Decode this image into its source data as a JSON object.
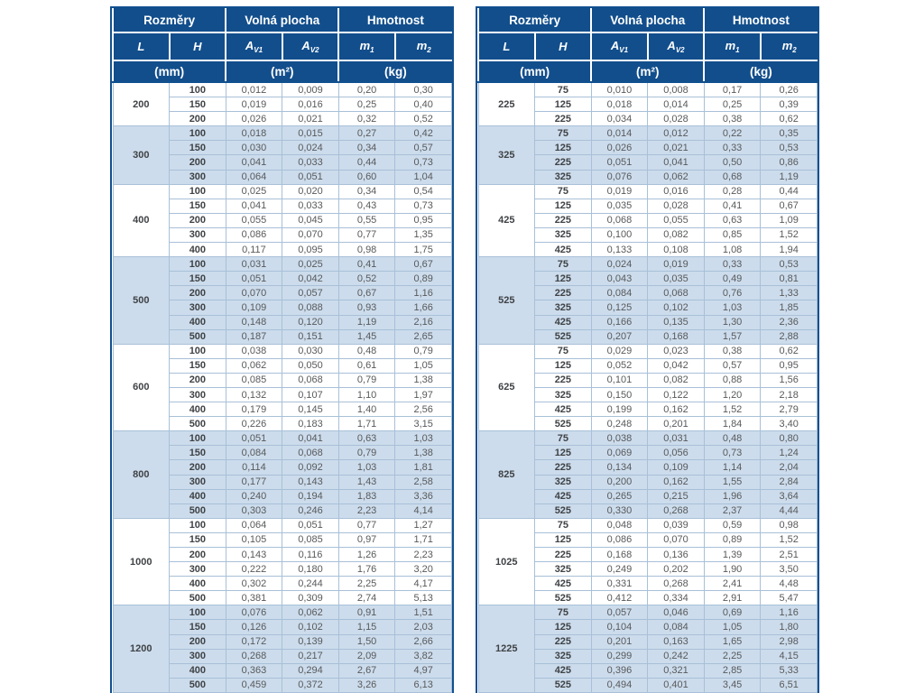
{
  "header": {
    "groups": [
      "Rozměry",
      "Volná plocha",
      "Hmotnost"
    ],
    "vars": {
      "L": "L",
      "H": "H",
      "A": "A",
      "m": "m",
      "v1": "V1",
      "v2": "V2",
      "s1": "1",
      "s2": "2"
    },
    "units": [
      "(mm)",
      "(m²)",
      "(kg)"
    ]
  },
  "colors": {
    "header_bg": "#124e8c",
    "alt_band_bg": "#ccdcec",
    "grid_line": "#a8c0d8",
    "outer_border": "#11508f",
    "value_text": "#58595b",
    "bold_text": "#3f4245"
  },
  "tables": [
    {
      "groups": [
        {
          "L": "200",
          "rows": [
            [
              "100",
              "0,012",
              "0,009",
              "0,20",
              "0,30"
            ],
            [
              "150",
              "0,019",
              "0,016",
              "0,25",
              "0,40"
            ],
            [
              "200",
              "0,026",
              "0,021",
              "0,32",
              "0,52"
            ]
          ]
        },
        {
          "L": "300",
          "rows": [
            [
              "100",
              "0,018",
              "0,015",
              "0,27",
              "0,42"
            ],
            [
              "150",
              "0,030",
              "0,024",
              "0,34",
              "0,57"
            ],
            [
              "200",
              "0,041",
              "0,033",
              "0,44",
              "0,73"
            ],
            [
              "300",
              "0,064",
              "0,051",
              "0,60",
              "1,04"
            ]
          ]
        },
        {
          "L": "400",
          "rows": [
            [
              "100",
              "0,025",
              "0,020",
              "0,34",
              "0,54"
            ],
            [
              "150",
              "0,041",
              "0,033",
              "0,43",
              "0,73"
            ],
            [
              "200",
              "0,055",
              "0,045",
              "0,55",
              "0,95"
            ],
            [
              "300",
              "0,086",
              "0,070",
              "0,77",
              "1,35"
            ],
            [
              "400",
              "0,117",
              "0,095",
              "0,98",
              "1,75"
            ]
          ]
        },
        {
          "L": "500",
          "rows": [
            [
              "100",
              "0,031",
              "0,025",
              "0,41",
              "0,67"
            ],
            [
              "150",
              "0,051",
              "0,042",
              "0,52",
              "0,89"
            ],
            [
              "200",
              "0,070",
              "0,057",
              "0,67",
              "1,16"
            ],
            [
              "300",
              "0,109",
              "0,088",
              "0,93",
              "1,66"
            ],
            [
              "400",
              "0,148",
              "0,120",
              "1,19",
              "2,16"
            ],
            [
              "500",
              "0,187",
              "0,151",
              "1,45",
              "2,65"
            ]
          ]
        },
        {
          "L": "600",
          "rows": [
            [
              "100",
              "0,038",
              "0,030",
              "0,48",
              "0,79"
            ],
            [
              "150",
              "0,062",
              "0,050",
              "0,61",
              "1,05"
            ],
            [
              "200",
              "0,085",
              "0,068",
              "0,79",
              "1,38"
            ],
            [
              "300",
              "0,132",
              "0,107",
              "1,10",
              "1,97"
            ],
            [
              "400",
              "0,179",
              "0,145",
              "1,40",
              "2,56"
            ],
            [
              "500",
              "0,226",
              "0,183",
              "1,71",
              "3,15"
            ]
          ]
        },
        {
          "L": "800",
          "rows": [
            [
              "100",
              "0,051",
              "0,041",
              "0,63",
              "1,03"
            ],
            [
              "150",
              "0,084",
              "0,068",
              "0,79",
              "1,38"
            ],
            [
              "200",
              "0,114",
              "0,092",
              "1,03",
              "1,81"
            ],
            [
              "300",
              "0,177",
              "0,143",
              "1,43",
              "2,58"
            ],
            [
              "400",
              "0,240",
              "0,194",
              "1,83",
              "3,36"
            ],
            [
              "500",
              "0,303",
              "0,246",
              "2,23",
              "4,14"
            ]
          ]
        },
        {
          "L": "1000",
          "rows": [
            [
              "100",
              "0,064",
              "0,051",
              "0,77",
              "1,27"
            ],
            [
              "150",
              "0,105",
              "0,085",
              "0,97",
              "1,71"
            ],
            [
              "200",
              "0,143",
              "0,116",
              "1,26",
              "2,23"
            ],
            [
              "300",
              "0,222",
              "0,180",
              "1,76",
              "3,20"
            ],
            [
              "400",
              "0,302",
              "0,244",
              "2,25",
              "4,17"
            ],
            [
              "500",
              "0,381",
              "0,309",
              "2,74",
              "5,13"
            ]
          ]
        },
        {
          "L": "1200",
          "rows": [
            [
              "100",
              "0,076",
              "0,062",
              "0,91",
              "1,51"
            ],
            [
              "150",
              "0,126",
              "0,102",
              "1,15",
              "2,03"
            ],
            [
              "200",
              "0,172",
              "0,139",
              "1,50",
              "2,66"
            ],
            [
              "300",
              "0,268",
              "0,217",
              "2,09",
              "3,82"
            ],
            [
              "400",
              "0,363",
              "0,294",
              "2,67",
              "4,97"
            ],
            [
              "500",
              "0,459",
              "0,372",
              "3,26",
              "6,13"
            ]
          ]
        }
      ]
    },
    {
      "groups": [
        {
          "L": "225",
          "rows": [
            [
              "75",
              "0,010",
              "0,008",
              "0,17",
              "0,26"
            ],
            [
              "125",
              "0,018",
              "0,014",
              "0,25",
              "0,39"
            ],
            [
              "225",
              "0,034",
              "0,028",
              "0,38",
              "0,62"
            ]
          ]
        },
        {
          "L": "325",
          "rows": [
            [
              "75",
              "0,014",
              "0,012",
              "0,22",
              "0,35"
            ],
            [
              "125",
              "0,026",
              "0,021",
              "0,33",
              "0,53"
            ],
            [
              "225",
              "0,051",
              "0,041",
              "0,50",
              "0,86"
            ],
            [
              "325",
              "0,076",
              "0,062",
              "0,68",
              "1,19"
            ]
          ]
        },
        {
          "L": "425",
          "rows": [
            [
              "75",
              "0,019",
              "0,016",
              "0,28",
              "0,44"
            ],
            [
              "125",
              "0,035",
              "0,028",
              "0,41",
              "0,67"
            ],
            [
              "225",
              "0,068",
              "0,055",
              "0,63",
              "1,09"
            ],
            [
              "325",
              "0,100",
              "0,082",
              "0,85",
              "1,52"
            ],
            [
              "425",
              "0,133",
              "0,108",
              "1,08",
              "1,94"
            ]
          ]
        },
        {
          "L": "525",
          "rows": [
            [
              "75",
              "0,024",
              "0,019",
              "0,33",
              "0,53"
            ],
            [
              "125",
              "0,043",
              "0,035",
              "0,49",
              "0,81"
            ],
            [
              "225",
              "0,084",
              "0,068",
              "0,76",
              "1,33"
            ],
            [
              "325",
              "0,125",
              "0,102",
              "1,03",
              "1,85"
            ],
            [
              "425",
              "0,166",
              "0,135",
              "1,30",
              "2,36"
            ],
            [
              "525",
              "0,207",
              "0,168",
              "1,57",
              "2,88"
            ]
          ]
        },
        {
          "L": "625",
          "rows": [
            [
              "75",
              "0,029",
              "0,023",
              "0,38",
              "0,62"
            ],
            [
              "125",
              "0,052",
              "0,042",
              "0,57",
              "0,95"
            ],
            [
              "225",
              "0,101",
              "0,082",
              "0,88",
              "1,56"
            ],
            [
              "325",
              "0,150",
              "0,122",
              "1,20",
              "2,18"
            ],
            [
              "425",
              "0,199",
              "0,162",
              "1,52",
              "2,79"
            ],
            [
              "525",
              "0,248",
              "0,201",
              "1,84",
              "3,40"
            ]
          ]
        },
        {
          "L": "825",
          "rows": [
            [
              "75",
              "0,038",
              "0,031",
              "0,48",
              "0,80"
            ],
            [
              "125",
              "0,069",
              "0,056",
              "0,73",
              "1,24"
            ],
            [
              "225",
              "0,134",
              "0,109",
              "1,14",
              "2,04"
            ],
            [
              "325",
              "0,200",
              "0,162",
              "1,55",
              "2,84"
            ],
            [
              "425",
              "0,265",
              "0,215",
              "1,96",
              "3,64"
            ],
            [
              "525",
              "0,330",
              "0,268",
              "2,37",
              "4,44"
            ]
          ]
        },
        {
          "L": "1025",
          "rows": [
            [
              "75",
              "0,048",
              "0,039",
              "0,59",
              "0,98"
            ],
            [
              "125",
              "0,086",
              "0,070",
              "0,89",
              "1,52"
            ],
            [
              "225",
              "0,168",
              "0,136",
              "1,39",
              "2,51"
            ],
            [
              "325",
              "0,249",
              "0,202",
              "1,90",
              "3,50"
            ],
            [
              "425",
              "0,331",
              "0,268",
              "2,41",
              "4,48"
            ],
            [
              "525",
              "0,412",
              "0,334",
              "2,91",
              "5,47"
            ]
          ]
        },
        {
          "L": "1225",
          "rows": [
            [
              "75",
              "0,057",
              "0,046",
              "0,69",
              "1,16"
            ],
            [
              "125",
              "0,104",
              "0,084",
              "1,05",
              "1,80"
            ],
            [
              "225",
              "0,201",
              "0,163",
              "1,65",
              "2,98"
            ],
            [
              "325",
              "0,299",
              "0,242",
              "2,25",
              "4,15"
            ],
            [
              "425",
              "0,396",
              "0,321",
              "2,85",
              "5,33"
            ],
            [
              "525",
              "0,494",
              "0,401",
              "3,45",
              "6,51"
            ]
          ]
        }
      ]
    }
  ]
}
